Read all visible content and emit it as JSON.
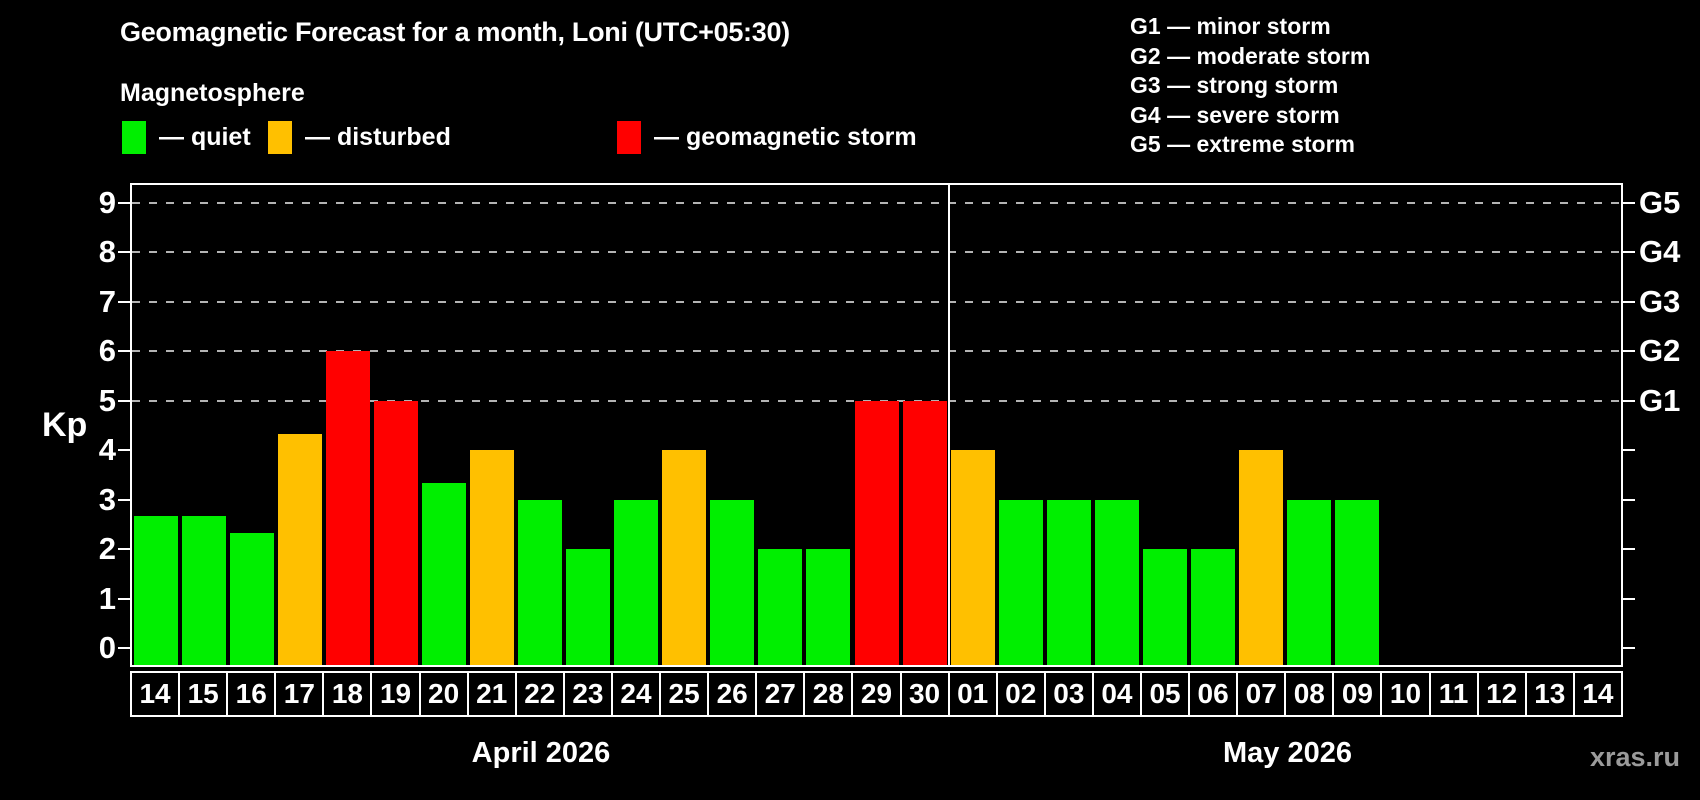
{
  "watermark": "xras.ru",
  "legend": {
    "heading": "Magnetosphere",
    "items": [
      {
        "name": "quiet",
        "label": "— quiet"
      },
      {
        "name": "disturbed",
        "label": "— disturbed"
      },
      {
        "name": "storm",
        "label": "— geomagnetic storm"
      }
    ]
  },
  "storm_scale": [
    "G1 — minor storm",
    "G2 — moderate storm",
    "G3 — strong storm",
    "G4 — severe storm",
    "G5 — extreme storm"
  ],
  "colors": {
    "background": "#000000",
    "quiet": "#00ef00",
    "disturbed": "#ffc000",
    "storm": "#ff0000",
    "grid": "#b4b4b4",
    "frame": "#ffffff",
    "watermark": "#9b9b9b"
  },
  "chart_data": {
    "type": "bar",
    "title": "Geomagnetic Forecast for a month, Loni (UTC+05:30)",
    "ylabel": "Kp",
    "ylim": [
      0,
      9
    ],
    "y_ticks": [
      0,
      1,
      2,
      3,
      4,
      5,
      6,
      7,
      8,
      9
    ],
    "grid_levels": [
      5,
      6,
      7,
      8,
      9
    ],
    "grid_style": "dashed",
    "legend_position": "top-left",
    "right_axis_labels": [
      {
        "label": "G1",
        "kp": 5
      },
      {
        "label": "G2",
        "kp": 6
      },
      {
        "label": "G3",
        "kp": 7
      },
      {
        "label": "G4",
        "kp": 8
      },
      {
        "label": "G5",
        "kp": 9
      }
    ],
    "months": [
      {
        "label": "April 2026",
        "days": [
          {
            "day": "14",
            "kp": 2.67,
            "status": "quiet"
          },
          {
            "day": "15",
            "kp": 2.67,
            "status": "quiet"
          },
          {
            "day": "16",
            "kp": 2.33,
            "status": "quiet"
          },
          {
            "day": "17",
            "kp": 4.33,
            "status": "disturbed"
          },
          {
            "day": "18",
            "kp": 6,
            "status": "storm"
          },
          {
            "day": "19",
            "kp": 5,
            "status": "storm"
          },
          {
            "day": "20",
            "kp": 3.33,
            "status": "quiet"
          },
          {
            "day": "21",
            "kp": 4,
            "status": "disturbed"
          },
          {
            "day": "22",
            "kp": 3,
            "status": "quiet"
          },
          {
            "day": "23",
            "kp": 2,
            "status": "quiet"
          },
          {
            "day": "24",
            "kp": 3,
            "status": "quiet"
          },
          {
            "day": "25",
            "kp": 4,
            "status": "disturbed"
          },
          {
            "day": "26",
            "kp": 3,
            "status": "quiet"
          },
          {
            "day": "27",
            "kp": 2,
            "status": "quiet"
          },
          {
            "day": "28",
            "kp": 2,
            "status": "quiet"
          },
          {
            "day": "29",
            "kp": 5,
            "status": "storm"
          },
          {
            "day": "30",
            "kp": 5,
            "status": "storm"
          }
        ]
      },
      {
        "label": "May 2026",
        "days": [
          {
            "day": "01",
            "kp": 4,
            "status": "disturbed"
          },
          {
            "day": "02",
            "kp": 3,
            "status": "quiet"
          },
          {
            "day": "03",
            "kp": 3,
            "status": "quiet"
          },
          {
            "day": "04",
            "kp": 3,
            "status": "quiet"
          },
          {
            "day": "05",
            "kp": 2,
            "status": "quiet"
          },
          {
            "day": "06",
            "kp": 2,
            "status": "quiet"
          },
          {
            "day": "07",
            "kp": 4,
            "status": "disturbed"
          },
          {
            "day": "08",
            "kp": 3,
            "status": "quiet"
          },
          {
            "day": "09",
            "kp": 3,
            "status": "quiet"
          },
          {
            "day": "10",
            "kp": null,
            "status": null
          },
          {
            "day": "11",
            "kp": null,
            "status": null
          },
          {
            "day": "12",
            "kp": null,
            "status": null
          },
          {
            "day": "13",
            "kp": null,
            "status": null
          },
          {
            "day": "14",
            "kp": null,
            "status": null
          }
        ]
      }
    ]
  }
}
